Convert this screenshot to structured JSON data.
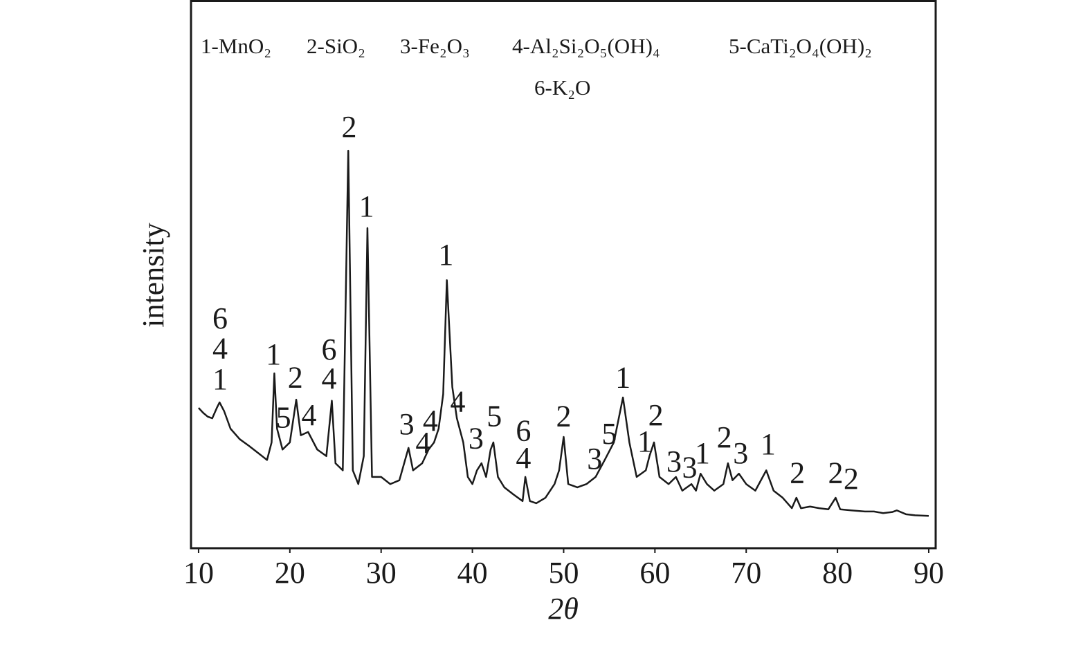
{
  "chart_data": {
    "type": "line",
    "xlabel": "2θ",
    "ylabel": "intensity",
    "legend_items": [
      "1-MnO₂",
      "2-SiO₂",
      "3-Fe₂O₃",
      "4-Al₂Si₂O₅(OH)₄",
      "5-CaTi₂O₄(OH)₂",
      "6-K₂O"
    ],
    "xlim": [
      9.17,
      90.76
    ],
    "ylim": [
      0,
      100
    ],
    "xticks": [
      10,
      20,
      30,
      40,
      50,
      60,
      70,
      80,
      90
    ],
    "grid": false,
    "color": "#1a1a1a",
    "x": [
      10,
      10.5,
      11,
      11.5,
      12,
      12.3,
      12.8,
      13.5,
      14.5,
      15.5,
      16.5,
      17.5,
      18,
      18.3,
      18.6,
      19.2,
      20,
      20.7,
      21.2,
      22,
      23,
      24,
      24.6,
      25,
      25.8,
      26.4,
      26.9,
      27.5,
      28.1,
      28.5,
      29,
      30,
      31,
      32,
      33,
      33.5,
      34.5,
      35.2,
      35.8,
      36.3,
      36.8,
      37.2,
      37.8,
      38.3,
      39,
      39.5,
      40,
      40.5,
      41,
      41.5,
      42,
      42.3,
      42.8,
      43.5,
      44.5,
      45.5,
      45.8,
      46.3,
      47,
      48,
      49,
      49.5,
      50,
      50.5,
      51.5,
      52.5,
      53.5,
      54.5,
      55.5,
      56.5,
      57.2,
      58,
      59,
      59.4,
      59.9,
      60.5,
      61.5,
      62.3,
      63,
      64,
      64.5,
      65,
      65.7,
      66.5,
      67.5,
      68,
      68.5,
      69.2,
      70,
      71,
      72.2,
      73,
      74,
      75,
      75.5,
      76,
      77,
      78,
      79,
      79.8,
      80.3,
      81.5,
      83,
      84,
      85,
      86,
      86.5,
      87.5,
      88.5,
      90
    ],
    "values": [
      25.6,
      24.7,
      24.0,
      23.7,
      25.6,
      26.6,
      25.0,
      21.8,
      19.9,
      18.7,
      17.4,
      16.1,
      19.3,
      31.9,
      21.8,
      18.0,
      19.3,
      27.1,
      20.6,
      21.2,
      18.0,
      16.8,
      26.9,
      15.5,
      14.2,
      72.5,
      14.2,
      11.7,
      16.8,
      58.4,
      13.0,
      13.0,
      11.7,
      12.4,
      18.3,
      14.2,
      15.5,
      18.0,
      19.3,
      21.8,
      28.1,
      48.9,
      29.4,
      23.7,
      19.3,
      13.0,
      11.7,
      14.2,
      15.5,
      13.0,
      18.0,
      19.3,
      13.0,
      11.1,
      9.8,
      8.6,
      13.0,
      8.6,
      8.2,
      9.2,
      11.7,
      14.2,
      20.3,
      11.7,
      11.1,
      11.7,
      13.0,
      16.1,
      19.3,
      27.5,
      19.3,
      13.0,
      14.2,
      16.8,
      19.3,
      13.0,
      11.7,
      13.0,
      10.5,
      11.7,
      10.5,
      13.6,
      11.7,
      10.5,
      11.7,
      15.5,
      12.4,
      13.6,
      11.7,
      10.5,
      14.2,
      10.5,
      9.2,
      7.3,
      9.2,
      7.3,
      7.6,
      7.3,
      7.1,
      9.2,
      7.1,
      6.9,
      6.7,
      6.7,
      6.4,
      6.6,
      6.9,
      6.2,
      6.0,
      5.9
    ],
    "annotations": [
      {
        "text": "6",
        "x": 12.35,
        "y": 41.4
      },
      {
        "text": "4",
        "x": 12.35,
        "y": 35.9
      },
      {
        "text": "1",
        "x": 12.35,
        "y": 30.3
      },
      {
        "text": "1",
        "x": 18.2,
        "y": 34.8
      },
      {
        "text": "2",
        "x": 20.6,
        "y": 30.6
      },
      {
        "text": "5",
        "x": 19.3,
        "y": 23.3
      },
      {
        "text": "4",
        "x": 22.1,
        "y": 23.7
      },
      {
        "text": "6",
        "x": 24.3,
        "y": 35.7
      },
      {
        "text": "4",
        "x": 24.3,
        "y": 30.4
      },
      {
        "text": "2",
        "x": 26.5,
        "y": 76.3
      },
      {
        "text": "1",
        "x": 28.4,
        "y": 61.8
      },
      {
        "text": "3",
        "x": 32.8,
        "y": 22.1
      },
      {
        "text": "4",
        "x": 34.6,
        "y": 18.7
      },
      {
        "text": "4",
        "x": 35.4,
        "y": 22.7
      },
      {
        "text": "1",
        "x": 37.1,
        "y": 53.0
      },
      {
        "text": "4",
        "x": 38.4,
        "y": 26.2
      },
      {
        "text": "3",
        "x": 40.4,
        "y": 19.5
      },
      {
        "text": "5",
        "x": 42.4,
        "y": 23.5
      },
      {
        "text": "6",
        "x": 45.6,
        "y": 20.9
      },
      {
        "text": "4",
        "x": 45.6,
        "y": 15.9
      },
      {
        "text": "2",
        "x": 50.0,
        "y": 23.5
      },
      {
        "text": "1",
        "x": 56.5,
        "y": 30.6
      },
      {
        "text": "5",
        "x": 55.0,
        "y": 20.3
      },
      {
        "text": "3",
        "x": 53.4,
        "y": 15.8
      },
      {
        "text": "2",
        "x": 60.1,
        "y": 23.7
      },
      {
        "text": "1",
        "x": 58.9,
        "y": 18.9
      },
      {
        "text": "3",
        "x": 62.1,
        "y": 15.3
      },
      {
        "text": "3",
        "x": 63.8,
        "y": 14.2
      },
      {
        "text": "1",
        "x": 65.2,
        "y": 16.8
      },
      {
        "text": "2",
        "x": 67.6,
        "y": 19.7
      },
      {
        "text": "3",
        "x": 69.4,
        "y": 16.8
      },
      {
        "text": "1",
        "x": 72.4,
        "y": 18.4
      },
      {
        "text": "2",
        "x": 75.6,
        "y": 13.2
      },
      {
        "text": "2",
        "x": 79.8,
        "y": 13.2
      },
      {
        "text": "2",
        "x": 81.5,
        "y": 12.1
      }
    ]
  }
}
